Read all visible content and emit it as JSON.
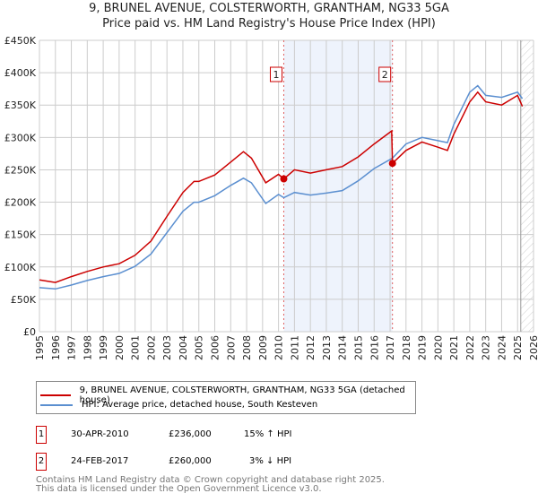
{
  "chart_data": {
    "type": "line",
    "title": "9, BRUNEL AVENUE, COLSTERWORTH, GRANTHAM, NG33 5GA",
    "subtitle": "Price paid vs. HM Land Registry's House Price Index (HPI)",
    "ylim": [
      0,
      450000
    ],
    "xlim": [
      1995,
      2026
    ],
    "yticks": [
      {
        "v": 0,
        "l": "£0"
      },
      {
        "v": 50000,
        "l": "£50K"
      },
      {
        "v": 100000,
        "l": "£100K"
      },
      {
        "v": 150000,
        "l": "£150K"
      },
      {
        "v": 200000,
        "l": "£200K"
      },
      {
        "v": 250000,
        "l": "£250K"
      },
      {
        "v": 300000,
        "l": "£300K"
      },
      {
        "v": 350000,
        "l": "£350K"
      },
      {
        "v": 400000,
        "l": "£400K"
      },
      {
        "v": 450000,
        "l": "£450K"
      }
    ],
    "xticks": [
      "1995",
      "1996",
      "1997",
      "1998",
      "1999",
      "2000",
      "2001",
      "2002",
      "2003",
      "2004",
      "2005",
      "2006",
      "2007",
      "2008",
      "2009",
      "2010",
      "2011",
      "2012",
      "2013",
      "2014",
      "2015",
      "2016",
      "2017",
      "2018",
      "2019",
      "2020",
      "2021",
      "2022",
      "2023",
      "2024",
      "2025",
      "2026"
    ],
    "series": [
      {
        "name": "9, BRUNEL AVENUE, COLSTERWORTH, GRANTHAM, NG33 5GA (detached house)",
        "color": "#cc0000",
        "x": [
          1995,
          1996,
          1997,
          1998,
          1999,
          2000,
          2001,
          2002,
          2003,
          2004,
          2004.7,
          2005,
          2006,
          2007,
          2007.8,
          2008.3,
          2009.2,
          2010,
          2010.33,
          2011,
          2012,
          2013,
          2014,
          2015,
          2016,
          2017.1,
          2017.15,
          2018,
          2019,
          2020,
          2020.6,
          2021,
          2022,
          2022.5,
          2023,
          2024,
          2025,
          2025.3
        ],
        "y": [
          80000,
          76000,
          85000,
          93000,
          100000,
          105000,
          118000,
          140000,
          178000,
          215000,
          232000,
          232000,
          242000,
          262000,
          278000,
          268000,
          230000,
          243000,
          236000,
          250000,
          245000,
          250000,
          255000,
          270000,
          290000,
          310000,
          260000,
          280000,
          293000,
          285000,
          280000,
          305000,
          355000,
          370000,
          355000,
          350000,
          365000,
          348000
        ]
      },
      {
        "name": "HPI: Average price, detached house, South Kesteven",
        "color": "#5b8fd0",
        "x": [
          1995,
          1996,
          1997,
          1998,
          1999,
          2000,
          2001,
          2002,
          2003,
          2004,
          2004.7,
          2005,
          2006,
          2007,
          2007.8,
          2008.3,
          2009.2,
          2010,
          2010.33,
          2011,
          2012,
          2013,
          2014,
          2015,
          2016,
          2017.15,
          2018,
          2019,
          2020,
          2020.6,
          2021,
          2022,
          2022.5,
          2023,
          2024,
          2025,
          2025.3
        ],
        "y": [
          68000,
          66000,
          72000,
          79000,
          85000,
          90000,
          101000,
          120000,
          153000,
          186000,
          200000,
          200000,
          210000,
          226000,
          237000,
          230000,
          198000,
          212000,
          207000,
          215000,
          211000,
          214000,
          218000,
          233000,
          252000,
          268000,
          290000,
          300000,
          295000,
          292000,
          320000,
          370000,
          380000,
          365000,
          362000,
          370000,
          360000
        ]
      }
    ],
    "sales": [
      {
        "num": "1",
        "x": 2010.33,
        "price": 236000
      },
      {
        "num": "2",
        "x": 2017.15,
        "price": 260000
      }
    ],
    "shaded_range": [
      2010.33,
      2017.15
    ],
    "forecast_hatch_from": 2025.2
  },
  "legend": {
    "property": "9, BRUNEL AVENUE, COLSTERWORTH, GRANTHAM, NG33 5GA (detached house)",
    "hpi": "HPI: Average price, detached house, South Kesteven"
  },
  "table": [
    {
      "num": "1",
      "date": "30-APR-2010",
      "price": "£236,000",
      "hpi": "15% ↑ HPI"
    },
    {
      "num": "2",
      "date": "24-FEB-2017",
      "price": "£260,000",
      "hpi": "3% ↓ HPI"
    }
  ],
  "footer": {
    "line1": "Contains HM Land Registry data © Crown copyright and database right 2025.",
    "line2": "This data is licensed under the Open Government Licence v3.0."
  }
}
